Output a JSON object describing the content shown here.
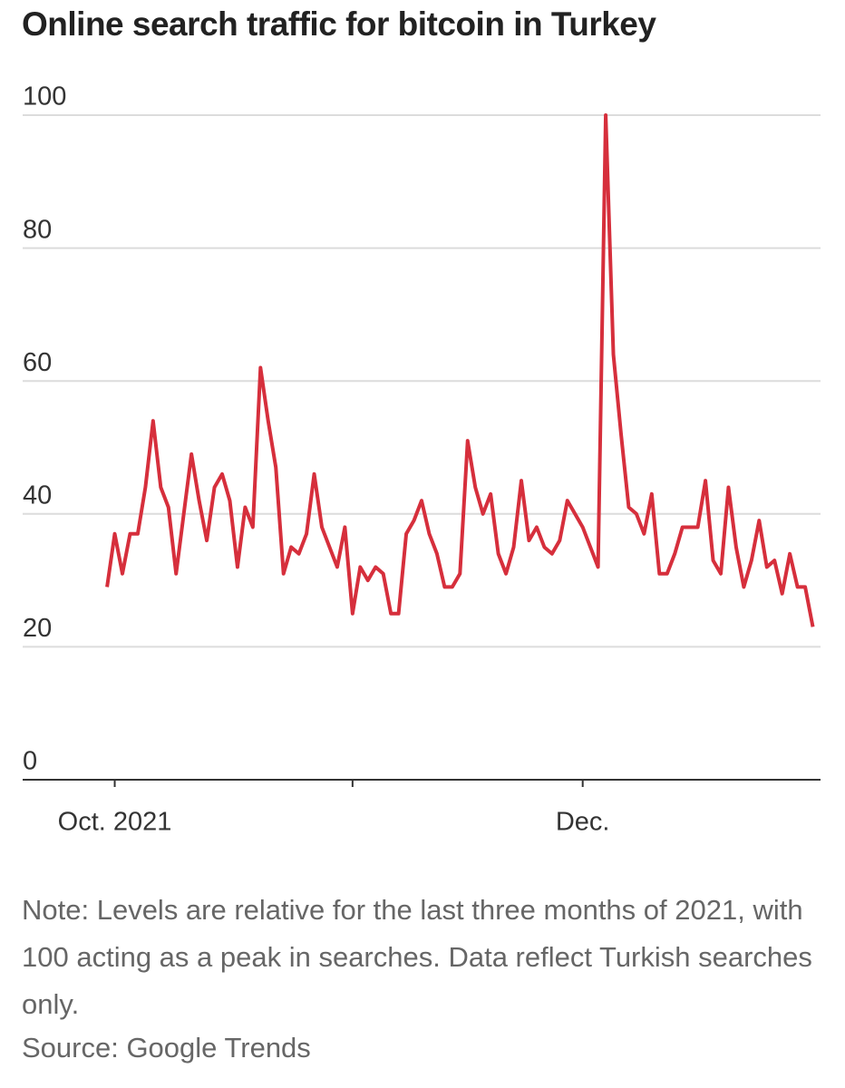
{
  "chart_data": {
    "type": "line",
    "title": "Online search traffic for bitcoin in Turkey",
    "note": "Note: Levels are relative for the last three months of 2021, with 100 acting as a peak in searches. Data reflect Turkish searches only.",
    "source": "Source: Google Trends",
    "x": [
      -1,
      0,
      1,
      2,
      3,
      4,
      5,
      6,
      7,
      8,
      9,
      10,
      11,
      12,
      13,
      14,
      15,
      16,
      17,
      18,
      19,
      20,
      21,
      22,
      23,
      24,
      25,
      26,
      27,
      28,
      29,
      30,
      31,
      32,
      33,
      34,
      35,
      36,
      37,
      38,
      39,
      40,
      41,
      42,
      43,
      44,
      45,
      46,
      47,
      48,
      49,
      50,
      51,
      52,
      53,
      54,
      55,
      56,
      57,
      58,
      59,
      60,
      61,
      62,
      63,
      64,
      65,
      66,
      67,
      68,
      69,
      70,
      71,
      72,
      73,
      74,
      75,
      76,
      77,
      78,
      79,
      80,
      81,
      82,
      83,
      84,
      85,
      86,
      87,
      88,
      89,
      90,
      91
    ],
    "series": [
      {
        "color": "#d62f3c",
        "values": [
          29,
          37,
          31,
          37,
          37,
          44,
          54,
          44,
          41,
          31,
          40,
          49,
          42,
          36,
          44,
          46,
          42,
          32,
          41,
          38,
          62,
          54,
          47,
          31,
          35,
          34,
          37,
          46,
          38,
          35,
          32,
          38,
          25,
          32,
          30,
          32,
          31,
          25,
          25,
          37,
          39,
          42,
          37,
          34,
          29,
          29,
          31,
          51,
          44,
          40,
          43,
          34,
          31,
          35,
          45,
          36,
          38,
          35,
          34,
          36,
          42,
          40,
          38,
          35,
          32,
          100,
          64,
          52,
          41,
          40,
          37,
          43,
          31,
          31,
          34,
          38,
          38,
          38,
          45,
          33,
          31,
          44,
          35,
          29,
          33,
          39,
          32,
          33,
          28,
          34,
          29,
          29,
          23
        ]
      }
    ],
    "xlim": [
      -12,
      92
    ],
    "xticks": [
      0,
      31,
      61
    ],
    "xticklabels": [
      {
        "value": 0,
        "label": "Oct. 2021"
      },
      {
        "value": 61,
        "label": "Dec."
      }
    ],
    "ylim": [
      0,
      100
    ],
    "yticks": [
      0,
      20,
      40,
      60,
      80,
      100
    ],
    "grid": true
  }
}
